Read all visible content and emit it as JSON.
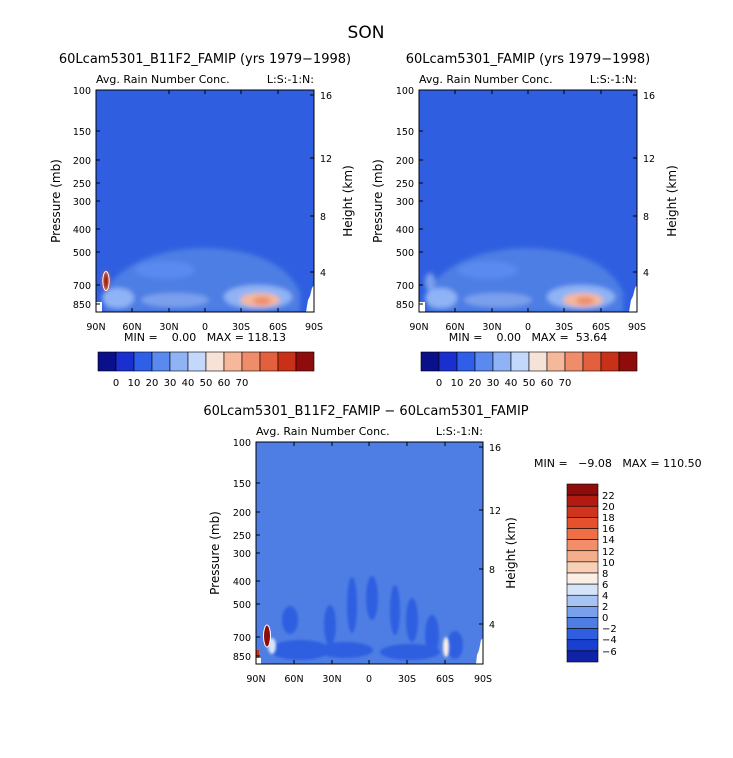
{
  "page": {
    "season_title": "SON"
  },
  "chart_data": [
    {
      "type": "heatmap",
      "title": "60Lcam5301_B11F2_FAMIP (yrs 1979−1998)",
      "subtitle": "Avg. Rain Number Conc.",
      "tag": "L:S:-1:N:",
      "ylabel": "Pressure (mb)",
      "ylabel_right": "Height (km)",
      "x_ticks": [
        "90N",
        "60N",
        "30N",
        "0",
        "30S",
        "60S",
        "90S"
      ],
      "y_ticks": [
        "100",
        "150",
        "200",
        "250",
        "300",
        "400",
        "500",
        "700",
        "850"
      ],
      "y_ticks_right": [
        "16",
        "12",
        "8",
        "4"
      ],
      "ylim": [
        1000,
        100
      ],
      "stats_text": "MIN =    0.00   MAX = 118.13",
      "colorbar": {
        "labels": [
          "0",
          "10",
          "20",
          "30",
          "40",
          "50",
          "60",
          "70"
        ],
        "colors": [
          "#0a0f8a",
          "#1a2fd0",
          "#2f5fe8",
          "#5a8af0",
          "#8fb3f5",
          "#c3d8fa",
          "#f7e2d8",
          "#f5b89a",
          "#ef8d6a",
          "#e3603f",
          "#c83118",
          "#8e0c0c"
        ]
      }
    },
    {
      "type": "heatmap",
      "title": "60Lcam5301_FAMIP (yrs 1979−1998)",
      "subtitle": "Avg. Rain Number Conc.",
      "tag": "L:S:-1:N:",
      "ylabel": "Pressure (mb)",
      "ylabel_right": "Height (km)",
      "x_ticks": [
        "90N",
        "60N",
        "30N",
        "0",
        "30S",
        "60S",
        "90S"
      ],
      "y_ticks": [
        "100",
        "150",
        "200",
        "250",
        "300",
        "400",
        "500",
        "700",
        "850"
      ],
      "y_ticks_right": [
        "16",
        "12",
        "8",
        "4"
      ],
      "ylim": [
        1000,
        100
      ],
      "stats_text": "MIN =    0.00   MAX =  53.64",
      "colorbar": {
        "labels": [
          "0",
          "10",
          "20",
          "30",
          "40",
          "50",
          "60",
          "70"
        ],
        "colors": [
          "#0a0f8a",
          "#1a2fd0",
          "#2f5fe8",
          "#5a8af0",
          "#8fb3f5",
          "#c3d8fa",
          "#f7e2d8",
          "#f5b89a",
          "#ef8d6a",
          "#e3603f",
          "#c83118",
          "#8e0c0c"
        ]
      }
    },
    {
      "type": "heatmap",
      "title": "60Lcam5301_B11F2_FAMIP − 60Lcam5301_FAMIP",
      "subtitle": "Avg. Rain Number Conc.",
      "tag": "L:S:-1:N:",
      "ylabel": "Pressure (mb)",
      "ylabel_right": "Height (km)",
      "x_ticks": [
        "90N",
        "60N",
        "30N",
        "0",
        "30S",
        "60S",
        "90S"
      ],
      "y_ticks": [
        "100",
        "150",
        "200",
        "250",
        "300",
        "400",
        "500",
        "700",
        "850"
      ],
      "y_ticks_right": [
        "16",
        "12",
        "8",
        "4"
      ],
      "ylim": [
        1000,
        100
      ],
      "stats_text": "MIN =   −9.08   MAX = 110.50",
      "colorbar": {
        "labels": [
          "22",
          "20",
          "18",
          "16",
          "14",
          "12",
          "10",
          "8",
          "6",
          "4",
          "2",
          "0",
          "−2",
          "−4",
          "−6"
        ],
        "colors": [
          "#8e0c0c",
          "#b31a12",
          "#d0341c",
          "#e4512c",
          "#ee6e45",
          "#f28e68",
          "#f5ae8c",
          "#f8d0b6",
          "#fbeee5",
          "#d6e4fa",
          "#a7c3f3",
          "#7aa0ec",
          "#4e7ee4",
          "#2f5fe0",
          "#1a3fd0",
          "#0f22a8"
        ]
      }
    }
  ]
}
